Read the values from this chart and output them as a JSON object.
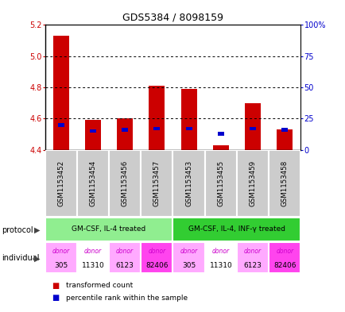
{
  "title": "GDS5384 / 8098159",
  "samples": [
    "GSM1153452",
    "GSM1153454",
    "GSM1153456",
    "GSM1153457",
    "GSM1153453",
    "GSM1153455",
    "GSM1153459",
    "GSM1153458"
  ],
  "red_values": [
    5.13,
    4.59,
    4.6,
    4.81,
    4.79,
    4.43,
    4.7,
    4.53
  ],
  "blue_percentiles": [
    20,
    15,
    16,
    17,
    17,
    13,
    17,
    16
  ],
  "ylim_left": [
    4.4,
    5.2
  ],
  "ylim_right": [
    0,
    100
  ],
  "yticks_left": [
    4.4,
    4.6,
    4.8,
    5.0,
    5.2
  ],
  "yticks_right": [
    0,
    25,
    50,
    75,
    100
  ],
  "ytick_labels_right": [
    "0",
    "25",
    "50",
    "75",
    "100%"
  ],
  "hlines": [
    5.0,
    4.8,
    4.6
  ],
  "protocol_groups": [
    {
      "label": "GM-CSF, IL-4 treated",
      "start": 0,
      "end": 3,
      "color": "#90ee90"
    },
    {
      "label": "GM-CSF, IL-4, INF-γ treated",
      "start": 4,
      "end": 7,
      "color": "#32cd32"
    }
  ],
  "individuals": [
    {
      "label": "donor\n305",
      "col": 0,
      "color": "#ffaaff"
    },
    {
      "label": "donor\n11310",
      "col": 1,
      "color": "#ffffff"
    },
    {
      "label": "donor\n6123",
      "col": 2,
      "color": "#ffaaff"
    },
    {
      "label": "donor\n82406",
      "col": 3,
      "color": "#ff44ee"
    },
    {
      "label": "donor\n305",
      "col": 4,
      "color": "#ffaaff"
    },
    {
      "label": "donor\n11310",
      "col": 5,
      "color": "#ffffff"
    },
    {
      "label": "donor\n6123",
      "col": 6,
      "color": "#ffaaff"
    },
    {
      "label": "donor\n82406",
      "col": 7,
      "color": "#ff44ee"
    }
  ],
  "bar_color_red": "#cc0000",
  "bar_color_blue": "#0000cc",
  "bar_width": 0.5,
  "left_tick_color": "#cc0000",
  "right_tick_color": "#0000cc",
  "legend_red_label": "transformed count",
  "legend_blue_label": "percentile rank within the sample",
  "sample_bg_color": "#cccccc"
}
